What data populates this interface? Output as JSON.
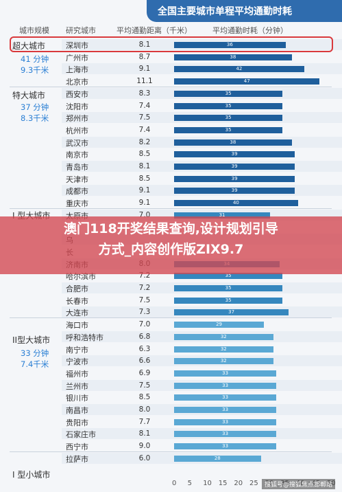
{
  "title": "全国主要城市单程平均通勤时耗",
  "headers": {
    "tier": "城市规模",
    "city": "研究城市",
    "dist": "平均通勤距离（千米）",
    "time": "平均通勤时耗（分钟）"
  },
  "overlay": {
    "line1": "澳门118开奖结果查询,设计规划引导",
    "line2": "方式_内容创作版ZIX9.7"
  },
  "watermark": "搜狐号@搜狐焦点邯郸站",
  "colors": {
    "dark_bar": "#1f5f9c",
    "mid_bar": "#3587be",
    "light_bar": "#5aa8d4",
    "highlight": "#d9393c"
  },
  "groups": [
    {
      "name": "超大城市",
      "time": "41 分钟",
      "dist": "9.3千米"
    },
    {
      "name": "特大城市",
      "time": "37 分钟",
      "dist": "8.3千米"
    },
    {
      "name": "I 型大城市",
      "time": "",
      "dist": ""
    },
    {
      "name": "II型大城市",
      "time": "33 分钟",
      "dist": "7.4千米"
    },
    {
      "name": "I 型小城市",
      "time": "",
      "dist": ""
    }
  ],
  "chart_data": {
    "type": "bar",
    "title": "全国主要城市单程平均通勤时耗",
    "xlabel": "",
    "ylabel": "",
    "xlim": [
      0,
      50
    ],
    "x_ticks": [
      "0",
      "5",
      "10",
      "15",
      "20",
      "25",
      "30",
      "35",
      "40",
      "45",
      "50"
    ],
    "rows": [
      {
        "city": "深圳市",
        "dist": "8.1",
        "value": 36,
        "group": 0
      },
      {
        "city": "广州市",
        "dist": "8.7",
        "value": 38,
        "group": 0
      },
      {
        "city": "上海市",
        "dist": "9.1",
        "value": 42,
        "group": 0
      },
      {
        "city": "北京市",
        "dist": "11.1",
        "value": 47,
        "group": 0
      },
      {
        "city": "西安市",
        "dist": "8.3",
        "value": 35,
        "group": 1
      },
      {
        "city": "沈阳市",
        "dist": "7.4",
        "value": 35,
        "group": 1
      },
      {
        "city": "郑州市",
        "dist": "7.5",
        "value": 35,
        "group": 1
      },
      {
        "city": "杭州市",
        "dist": "7.4",
        "value": 35,
        "group": 1
      },
      {
        "city": "武汉市",
        "dist": "8.2",
        "value": 38,
        "group": 1
      },
      {
        "city": "南京市",
        "dist": "8.5",
        "value": 39,
        "group": 1
      },
      {
        "city": "青岛市",
        "dist": "8.1",
        "value": 39,
        "group": 1
      },
      {
        "city": "天津市",
        "dist": "8.5",
        "value": 39,
        "group": 1
      },
      {
        "city": "成都市",
        "dist": "9.1",
        "value": 39,
        "group": 1
      },
      {
        "city": "重庆市",
        "dist": "9.1",
        "value": 40,
        "group": 1
      },
      {
        "city": "太原市",
        "dist": "7.0",
        "value": 31,
        "group": 2
      },
      {
        "city": "",
        "dist": "",
        "value": null,
        "group": 2
      },
      {
        "city": "乌",
        "dist": "",
        "value": null,
        "group": 2
      },
      {
        "city": "长",
        "dist": "",
        "value": null,
        "group": 2
      },
      {
        "city": "济南市",
        "dist": "8.0",
        "value": 34,
        "group": 2
      },
      {
        "city": "哈尔滨市",
        "dist": "7.2",
        "value": 35,
        "group": 2
      },
      {
        "city": "合肥市",
        "dist": "7.2",
        "value": 35,
        "group": 2
      },
      {
        "city": "长春市",
        "dist": "7.5",
        "value": 35,
        "group": 2
      },
      {
        "city": "大连市",
        "dist": "7.3",
        "value": 37,
        "group": 2
      },
      {
        "city": "海口市",
        "dist": "7.0",
        "value": 29,
        "group": 3
      },
      {
        "city": "呼和浩特市",
        "dist": "6.8",
        "value": 32,
        "group": 3
      },
      {
        "city": "南宁市",
        "dist": "6.3",
        "value": 32,
        "group": 3
      },
      {
        "city": "宁波市",
        "dist": "6.6",
        "value": 32,
        "group": 3
      },
      {
        "city": "福州市",
        "dist": "6.9",
        "value": 33,
        "group": 3
      },
      {
        "city": "兰州市",
        "dist": "7.5",
        "value": 33,
        "group": 3
      },
      {
        "city": "银川市",
        "dist": "8.5",
        "value": 33,
        "group": 3
      },
      {
        "city": "南昌市",
        "dist": "8.0",
        "value": 33,
        "group": 3
      },
      {
        "city": "贵阳市",
        "dist": "7.7",
        "value": 33,
        "group": 3
      },
      {
        "city": "石家庄市",
        "dist": "8.1",
        "value": 33,
        "group": 3
      },
      {
        "city": "西宁市",
        "dist": "9.0",
        "value": 33,
        "group": 3
      },
      {
        "city": "拉萨市",
        "dist": "6.0",
        "value": 28,
        "group": 4
      }
    ]
  }
}
